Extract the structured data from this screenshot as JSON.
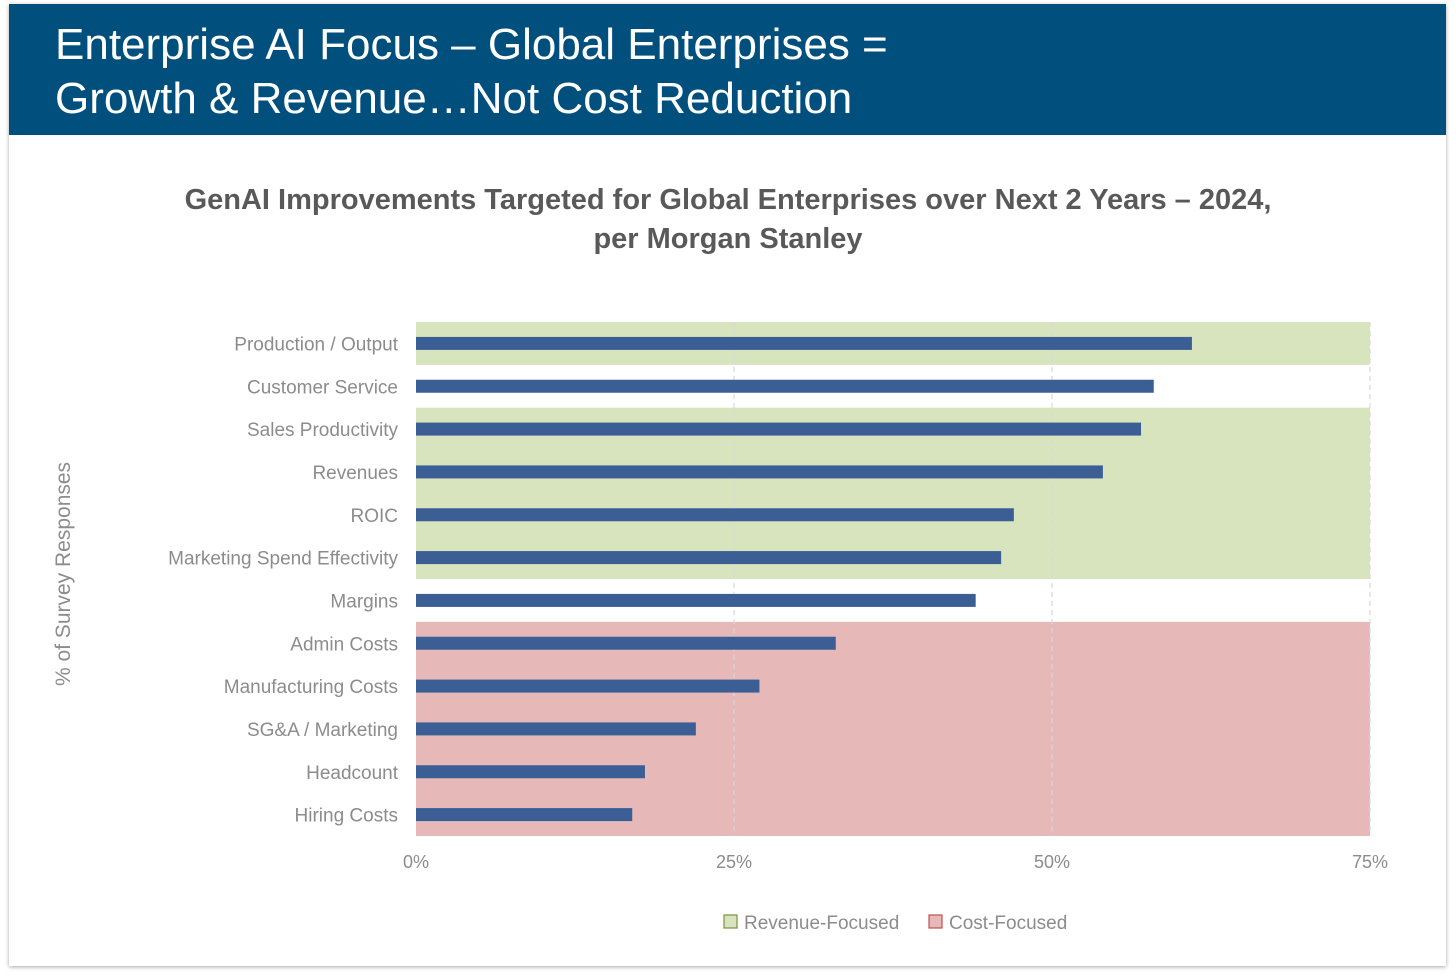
{
  "banner": {
    "title": "Enterprise AI Focus – Global Enterprises =\nGrowth & Revenue…Not Cost Reduction"
  },
  "colors": {
    "banner": "#004f7c",
    "bar": "#3b5f95",
    "revenue_band": "#d7e4bd",
    "cost_band": "#e6b9b8",
    "text": "#595959",
    "axis_text": "#8c8c8c"
  },
  "chart_data": {
    "type": "bar",
    "orientation": "horizontal",
    "title": "GenAI Improvements Targeted for Global Enterprises over Next 2 Years – 2024,\nper Morgan Stanley",
    "ylabel": "% of Survey Responses",
    "xlabel": "",
    "xlim": [
      0,
      75
    ],
    "x_ticks": [
      "0%",
      "25%",
      "50%",
      "75%"
    ],
    "x_tick_values": [
      0,
      25,
      50,
      75
    ],
    "grid": "vertical dashed",
    "categories": [
      "Production / Output",
      "Customer Service",
      "Sales Productivity",
      "Revenues",
      "ROIC",
      "Marketing Spend Effectivity",
      "Margins",
      "Admin Costs",
      "Manufacturing Costs",
      "SG&A / Marketing",
      "Headcount",
      "Hiring Costs"
    ],
    "values": [
      61,
      58,
      57,
      54,
      47,
      46,
      44,
      33,
      27,
      22,
      18,
      17
    ],
    "bands": [
      {
        "group": "Revenue-Focused",
        "categories": [
          "Production / Output"
        ]
      },
      {
        "group": "Revenue-Focused",
        "categories": [
          "Sales Productivity",
          "Revenues",
          "ROIC",
          "Marketing Spend Effectivity"
        ]
      },
      {
        "group": "Cost-Focused",
        "categories": [
          "Admin Costs",
          "Manufacturing Costs",
          "SG&A / Marketing",
          "Headcount",
          "Hiring Costs"
        ]
      }
    ],
    "legend": {
      "placement": "bottom-center",
      "entries": [
        {
          "label": "Revenue-Focused",
          "color": "#d7e4bd"
        },
        {
          "label": "Cost-Focused",
          "color": "#e6b9b8"
        }
      ]
    }
  }
}
